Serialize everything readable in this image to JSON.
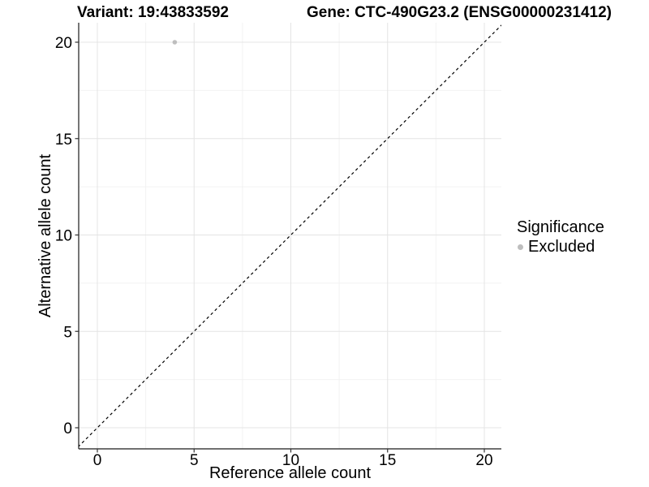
{
  "titles": {
    "left": "Variant: 19:43833592",
    "right": "Gene: CTC-490G23.2 (ENSG00000231412)"
  },
  "chart_data": {
    "type": "scatter",
    "title": "Variant: 19:43833592   Gene: CTC-490G23.2 (ENSG00000231412)",
    "xlabel": "Reference allele count",
    "ylabel": "Alternative allele count",
    "xlim": [
      -1,
      21
    ],
    "ylim": [
      -1,
      21
    ],
    "x_ticks": [
      0,
      5,
      10,
      15,
      20
    ],
    "y_ticks": [
      0,
      5,
      10,
      15,
      20
    ],
    "x_minor_ticks": [
      2.5,
      7.5,
      12.5,
      17.5
    ],
    "y_minor_ticks": [
      2.5,
      7.5,
      12.5,
      17.5
    ],
    "grid": true,
    "series": [
      {
        "name": "Excluded",
        "color": "#bebebe",
        "points": [
          {
            "x": 4,
            "y": 20
          }
        ]
      }
    ],
    "reference_line": {
      "equation": "y = x",
      "style": "dashed",
      "color": "#000000",
      "from": {
        "x": -1,
        "y": -1
      },
      "to": {
        "x": 21,
        "y": 21
      }
    },
    "legend": {
      "title": "Significance",
      "position": "right",
      "items": [
        {
          "label": "Excluded",
          "color": "#bebebe"
        }
      ]
    },
    "colors": {
      "background": "#ffffff",
      "major_grid": "#e4e4e4",
      "minor_grid": "#f2f2f2",
      "axis_line": "#1a1a1a",
      "tick": "#333333",
      "point": "#bebebe",
      "text": "#000000"
    }
  }
}
